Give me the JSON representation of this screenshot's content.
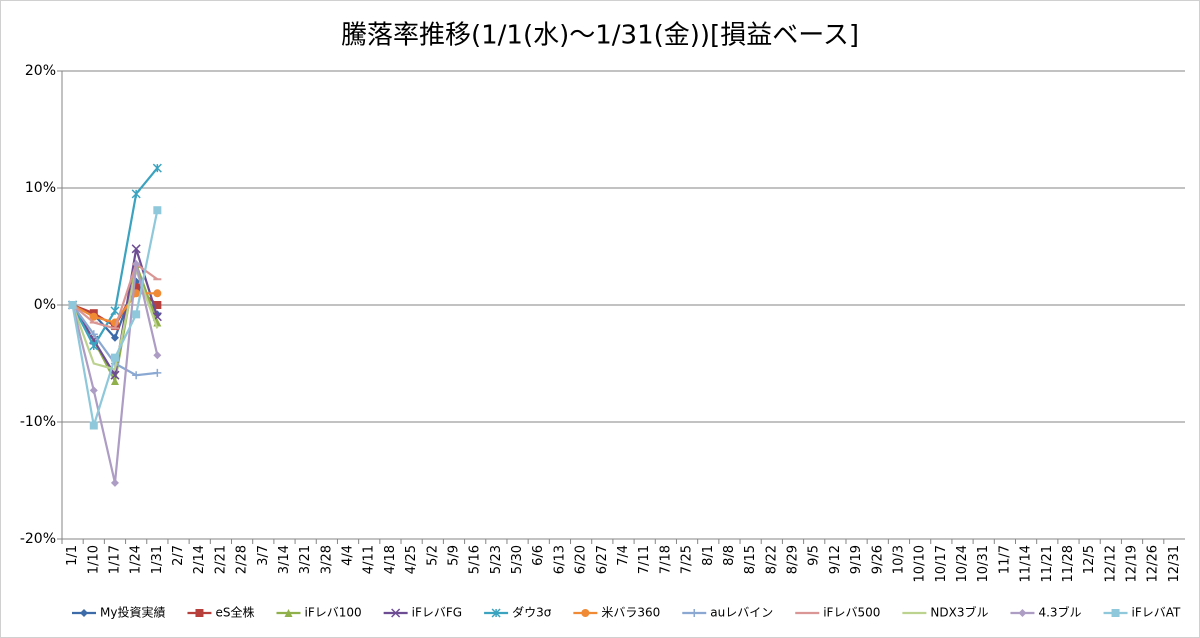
{
  "chart_data": {
    "type": "line",
    "title": "騰落率推移(1/1(水)～1/31(金))[損益ベース]",
    "categories": [
      "1/1",
      "1/10",
      "1/17",
      "1/24",
      "1/31",
      "2/7",
      "2/14",
      "2/21",
      "2/28",
      "3/7",
      "3/14",
      "3/21",
      "3/28",
      "4/4",
      "4/11",
      "4/18",
      "4/25",
      "5/2",
      "5/9",
      "5/16",
      "5/23",
      "5/30",
      "6/6",
      "6/13",
      "6/20",
      "6/27",
      "7/4",
      "7/11",
      "7/18",
      "7/25",
      "8/1",
      "8/8",
      "8/15",
      "8/22",
      "8/29",
      "9/5",
      "9/12",
      "9/19",
      "9/26",
      "10/3",
      "10/10",
      "10/17",
      "10/24",
      "10/31",
      "11/7",
      "11/14",
      "11/21",
      "11/28",
      "12/5",
      "12/12",
      "12/19",
      "12/26",
      "12/31"
    ],
    "ylim": [
      -20,
      20
    ],
    "yticks": [
      {
        "value": -20,
        "label": "-20%"
      },
      {
        "value": -10,
        "label": "-10%"
      },
      {
        "value": 0,
        "label": "0%"
      },
      {
        "value": 10,
        "label": "10%"
      },
      {
        "value": 20,
        "label": "20%"
      }
    ],
    "grid": true,
    "legend": "bottom",
    "series": [
      {
        "name": "My投資実績",
        "color": "#3d6aa8",
        "marker": "diamond",
        "values": [
          0,
          -0.8,
          -2.8,
          2.0,
          -0.8,
          null,
          null,
          null,
          null,
          null,
          null,
          null,
          null,
          null,
          null,
          null,
          null,
          null,
          null,
          null,
          null,
          null,
          null,
          null,
          null,
          null,
          null,
          null,
          null,
          null,
          null,
          null,
          null,
          null,
          null,
          null,
          null,
          null,
          null,
          null,
          null,
          null,
          null,
          null,
          null,
          null,
          null,
          null,
          null,
          null,
          null,
          null,
          null
        ]
      },
      {
        "name": "eS全株",
        "color": "#b8403c",
        "marker": "square",
        "values": [
          0,
          -0.7,
          -1.8,
          1.5,
          0,
          null,
          null,
          null,
          null,
          null,
          null,
          null,
          null,
          null,
          null,
          null,
          null,
          null,
          null,
          null,
          null,
          null,
          null,
          null,
          null,
          null,
          null,
          null,
          null,
          null,
          null,
          null,
          null,
          null,
          null,
          null,
          null,
          null,
          null,
          null,
          null,
          null,
          null,
          null,
          null,
          null,
          null,
          null,
          null,
          null,
          null,
          null,
          null
        ]
      },
      {
        "name": "iFレバ100",
        "color": "#8fb04a",
        "marker": "triangle",
        "values": [
          0,
          -3.0,
          -6.5,
          3.5,
          -1.5,
          null,
          null,
          null,
          null,
          null,
          null,
          null,
          null,
          null,
          null,
          null,
          null,
          null,
          null,
          null,
          null,
          null,
          null,
          null,
          null,
          null,
          null,
          null,
          null,
          null,
          null,
          null,
          null,
          null,
          null,
          null,
          null,
          null,
          null,
          null,
          null,
          null,
          null,
          null,
          null,
          null,
          null,
          null,
          null,
          null,
          null,
          null,
          null
        ]
      },
      {
        "name": "iFレバFG",
        "color": "#6e4c94",
        "marker": "x",
        "values": [
          0,
          -3.0,
          -6.0,
          4.8,
          -1.0,
          null,
          null,
          null,
          null,
          null,
          null,
          null,
          null,
          null,
          null,
          null,
          null,
          null,
          null,
          null,
          null,
          null,
          null,
          null,
          null,
          null,
          null,
          null,
          null,
          null,
          null,
          null,
          null,
          null,
          null,
          null,
          null,
          null,
          null,
          null,
          null,
          null,
          null,
          null,
          null,
          null,
          null,
          null,
          null,
          null,
          null,
          null,
          null
        ]
      },
      {
        "name": "ダウ3σ",
        "color": "#3ba3bf",
        "marker": "star",
        "values": [
          0,
          -3.5,
          -0.5,
          9.5,
          11.7,
          null,
          null,
          null,
          null,
          null,
          null,
          null,
          null,
          null,
          null,
          null,
          null,
          null,
          null,
          null,
          null,
          null,
          null,
          null,
          null,
          null,
          null,
          null,
          null,
          null,
          null,
          null,
          null,
          null,
          null,
          null,
          null,
          null,
          null,
          null,
          null,
          null,
          null,
          null,
          null,
          null,
          null,
          null,
          null,
          null,
          null,
          null,
          null
        ]
      },
      {
        "name": "米バラ360",
        "color": "#f08a35",
        "marker": "circle",
        "values": [
          0,
          -1.0,
          -1.5,
          1.0,
          1.0,
          null,
          null,
          null,
          null,
          null,
          null,
          null,
          null,
          null,
          null,
          null,
          null,
          null,
          null,
          null,
          null,
          null,
          null,
          null,
          null,
          null,
          null,
          null,
          null,
          null,
          null,
          null,
          null,
          null,
          null,
          null,
          null,
          null,
          null,
          null,
          null,
          null,
          null,
          null,
          null,
          null,
          null,
          null,
          null,
          null,
          null,
          null,
          null
        ]
      },
      {
        "name": "auレバイン",
        "color": "#8aa8d2",
        "marker": "plus",
        "values": [
          0,
          -2.5,
          -5.0,
          -6.0,
          -5.8,
          null,
          null,
          null,
          null,
          null,
          null,
          null,
          null,
          null,
          null,
          null,
          null,
          null,
          null,
          null,
          null,
          null,
          null,
          null,
          null,
          null,
          null,
          null,
          null,
          null,
          null,
          null,
          null,
          null,
          null,
          null,
          null,
          null,
          null,
          null,
          null,
          null,
          null,
          null,
          null,
          null,
          null,
          null,
          null,
          null,
          null,
          null,
          null
        ]
      },
      {
        "name": "iFレバ500",
        "color": "#d99694",
        "marker": "dash",
        "values": [
          0,
          -1.5,
          -2.0,
          3.5,
          2.2,
          null,
          null,
          null,
          null,
          null,
          null,
          null,
          null,
          null,
          null,
          null,
          null,
          null,
          null,
          null,
          null,
          null,
          null,
          null,
          null,
          null,
          null,
          null,
          null,
          null,
          null,
          null,
          null,
          null,
          null,
          null,
          null,
          null,
          null,
          null,
          null,
          null,
          null,
          null,
          null,
          null,
          null,
          null,
          null,
          null,
          null,
          null,
          null
        ]
      },
      {
        "name": "NDX3ブル",
        "color": "#bcd28f",
        "marker": "none",
        "values": [
          0,
          -5.0,
          -5.5,
          3.0,
          -2.0,
          null,
          null,
          null,
          null,
          null,
          null,
          null,
          null,
          null,
          null,
          null,
          null,
          null,
          null,
          null,
          null,
          null,
          null,
          null,
          null,
          null,
          null,
          null,
          null,
          null,
          null,
          null,
          null,
          null,
          null,
          null,
          null,
          null,
          null,
          null,
          null,
          null,
          null,
          null,
          null,
          null,
          null,
          null,
          null,
          null,
          null,
          null,
          null
        ]
      },
      {
        "name": "4.3ブル",
        "color": "#ad9cc4",
        "marker": "diamond",
        "values": [
          0,
          -7.3,
          -15.2,
          3.5,
          -4.3,
          null,
          null,
          null,
          null,
          null,
          null,
          null,
          null,
          null,
          null,
          null,
          null,
          null,
          null,
          null,
          null,
          null,
          null,
          null,
          null,
          null,
          null,
          null,
          null,
          null,
          null,
          null,
          null,
          null,
          null,
          null,
          null,
          null,
          null,
          null,
          null,
          null,
          null,
          null,
          null,
          null,
          null,
          null,
          null,
          null,
          null,
          null,
          null
        ]
      },
      {
        "name": "iFレバAT",
        "color": "#8ec8da",
        "marker": "square",
        "values": [
          0,
          -10.3,
          -4.5,
          -0.8,
          8.1,
          null,
          null,
          null,
          null,
          null,
          null,
          null,
          null,
          null,
          null,
          null,
          null,
          null,
          null,
          null,
          null,
          null,
          null,
          null,
          null,
          null,
          null,
          null,
          null,
          null,
          null,
          null,
          null,
          null,
          null,
          null,
          null,
          null,
          null,
          null,
          null,
          null,
          null,
          null,
          null,
          null,
          null,
          null,
          null,
          null,
          null,
          null,
          null
        ]
      }
    ]
  }
}
